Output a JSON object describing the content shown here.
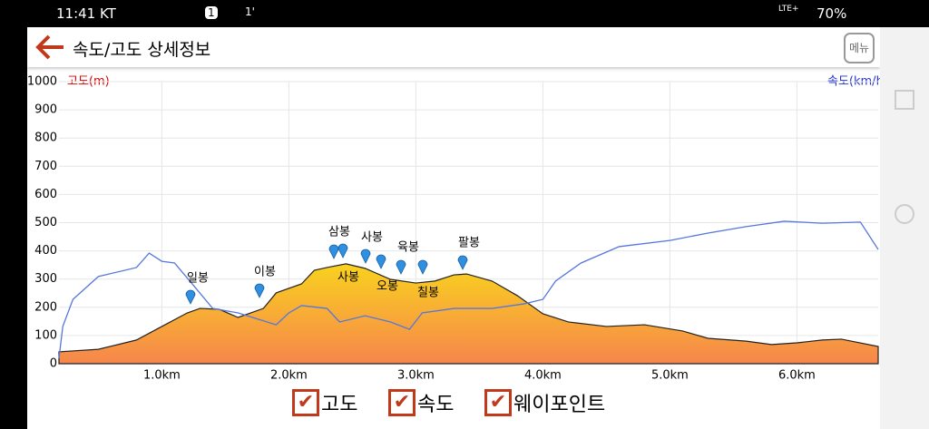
{
  "status_bar": {
    "time": "11:41 KT",
    "badge": "1",
    "signal_note": "1'",
    "network": "LTE+",
    "battery": "70%"
  },
  "header": {
    "title": "속도/고도 상세정보",
    "menu": "메뉴"
  },
  "chart_data": {
    "type": "area-line",
    "y_title": "고도(m)",
    "y2_title": "속도(km/h)",
    "xlim": [
      0.19,
      6.64
    ],
    "ylim": [
      0,
      1000
    ],
    "yticks": [
      0,
      100,
      200,
      300,
      400,
      500,
      600,
      700,
      800,
      900,
      1000
    ],
    "xticks": [
      {
        "value": 1,
        "label": "1.0km"
      },
      {
        "value": 2,
        "label": "2.0km"
      },
      {
        "value": 3,
        "label": "3.0km"
      },
      {
        "value": 4,
        "label": "4.0km"
      },
      {
        "value": 5,
        "label": "5.0km"
      },
      {
        "value": 6,
        "label": "6.0km"
      }
    ],
    "grid": true,
    "series": [
      {
        "name": "고도",
        "kind": "area",
        "color": "#f7a52a",
        "x": [
          0.19,
          0.5,
          0.8,
          1.0,
          1.2,
          1.3,
          1.45,
          1.6,
          1.8,
          1.9,
          2.1,
          2.2,
          2.3,
          2.45,
          2.6,
          2.8,
          3.0,
          3.15,
          3.3,
          3.4,
          3.6,
          3.8,
          4.0,
          4.2,
          4.5,
          4.8,
          5.1,
          5.3,
          5.6,
          5.8,
          6.0,
          6.2,
          6.35,
          6.64
        ],
        "values": [
          42,
          51,
          84,
          132,
          180,
          196,
          193,
          164,
          196,
          251,
          283,
          331,
          341,
          354,
          338,
          299,
          286,
          293,
          315,
          318,
          293,
          241,
          177,
          148,
          132,
          138,
          116,
          90,
          80,
          68,
          74,
          84,
          87,
          61
        ]
      },
      {
        "name": "속도",
        "kind": "line",
        "color": "#5577dd",
        "x": [
          0.19,
          0.22,
          0.3,
          0.5,
          0.8,
          0.9,
          1.0,
          1.1,
          1.25,
          1.4,
          1.6,
          1.9,
          2.0,
          2.1,
          2.3,
          2.4,
          2.6,
          2.8,
          2.95,
          3.05,
          3.3,
          3.6,
          3.85,
          4.0,
          4.1,
          4.3,
          4.6,
          5.0,
          5.3,
          5.6,
          5.9,
          6.2,
          6.5,
          6.64
        ],
        "values": [
          19,
          132,
          228,
          309,
          341,
          392,
          363,
          357,
          277,
          196,
          180,
          138,
          180,
          206,
          196,
          148,
          170,
          148,
          122,
          180,
          196,
          196,
          212,
          228,
          293,
          357,
          415,
          437,
          463,
          486,
          505,
          498,
          502,
          405
        ]
      }
    ],
    "waypoints": [
      "일봉",
      "이봉",
      "삼봉",
      "사봉",
      "육봉",
      "팔봉",
      "사봉",
      "오봉",
      "칠봉"
    ],
    "legend": [
      "고도",
      "속도",
      "웨이포인트"
    ]
  }
}
